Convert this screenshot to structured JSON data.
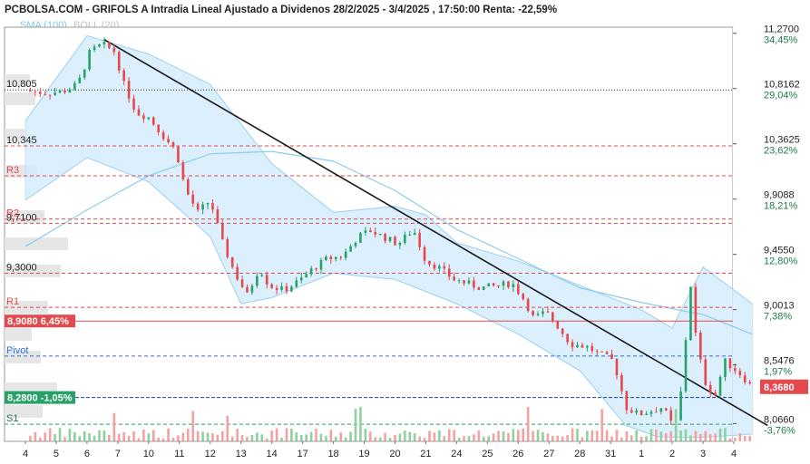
{
  "title": "PCBOLSA.COM - GRIFOLS A Intradia Lineal Ajustado a Dividenos 28/2/2025 - 3/4/2025 , 17:50:00 Renta: -22,59%",
  "legend": {
    "sma": "SMA (100)",
    "boll": "BOLL (20)"
  },
  "colors": {
    "up": "#26a269",
    "down": "#e5484d",
    "sma": "#8ccbf0",
    "band_fill": "#cfe9fb",
    "trendline": "#1a1a1a",
    "volume_up": "#8fd19e",
    "volume_down": "#f4a1a1",
    "badge_red": "#e5484d",
    "badge_green": "#26a269",
    "pivot_blue": "#2e6fd8"
  },
  "chart_data": {
    "type": "candlestick",
    "ylim": [
      7.92,
      11.32
    ],
    "x_labels": [
      "4",
      "5",
      "6",
      "7",
      "10",
      "11",
      "12",
      "13",
      "14",
      "17",
      "18",
      "19",
      "20",
      "21",
      "24",
      "25",
      "26",
      "27",
      "28",
      "31",
      "1",
      "2",
      "3",
      "4"
    ],
    "y_ticks": [
      {
        "price": 11.27,
        "label": "11,2700",
        "pct": "34,45%"
      },
      {
        "price": 10.8162,
        "label": "10,8162",
        "pct": "29,04%"
      },
      {
        "price": 10.3625,
        "label": "10,3625",
        "pct": "23,62%"
      },
      {
        "price": 9.9088,
        "label": "9,9088",
        "pct": "18,21%"
      },
      {
        "price": 9.455,
        "label": "9,4550",
        "pct": "12,80%"
      },
      {
        "price": 9.0013,
        "label": "9,0013",
        "pct": "7,38%"
      },
      {
        "price": 8.5476,
        "label": "8,5476",
        "pct": "1,97%"
      },
      {
        "price": 8.066,
        "label": "8,0660",
        "pct": "-3,76%"
      }
    ],
    "last_price": {
      "value": 8.368,
      "label": "8,3680"
    },
    "levels": [
      {
        "name": "10,805",
        "price": 10.805,
        "style": "resistance-dotted"
      },
      {
        "name": "10,345",
        "price": 10.345,
        "style": "red"
      },
      {
        "name": "R3",
        "price": 10.1,
        "style": "red"
      },
      {
        "name": "9,7100",
        "price": 9.71,
        "style": "red"
      },
      {
        "name": "R2",
        "price": 9.745,
        "style": "red"
      },
      {
        "name": "9,3000",
        "price": 9.3,
        "style": "red"
      },
      {
        "name": "R1",
        "price": 9.02,
        "style": "red"
      },
      {
        "name": "Pivot",
        "price": 8.62,
        "style": "pivot"
      },
      {
        "name": "S1",
        "price": 8.06,
        "style": "green"
      }
    ],
    "badges": [
      {
        "label": "8,9080  6,45%",
        "price": 8.908,
        "color": "red"
      },
      {
        "label": "8,2800  -1,05%",
        "price": 8.28,
        "color": "green"
      }
    ],
    "trendline": {
      "from": {
        "x": 2.55,
        "y": 11.22
      },
      "to": {
        "x": 24.1,
        "y": 8.05
      }
    },
    "price_path": [
      [
        0.0,
        10.8
      ],
      [
        0.6,
        10.78
      ],
      [
        1.2,
        10.79
      ],
      [
        1.7,
        10.85
      ],
      [
        2.1,
        11.12
      ],
      [
        2.5,
        11.18
      ],
      [
        2.9,
        11.12
      ],
      [
        3.2,
        10.85
      ],
      [
        3.6,
        10.62
      ],
      [
        4.0,
        10.58
      ],
      [
        4.5,
        10.42
      ],
      [
        4.9,
        10.3
      ],
      [
        5.2,
        9.98
      ],
      [
        5.6,
        9.8
      ],
      [
        6.0,
        9.9
      ],
      [
        6.4,
        9.55
      ],
      [
        6.8,
        9.3
      ],
      [
        7.2,
        9.12
      ],
      [
        7.6,
        9.35
      ],
      [
        7.9,
        9.2
      ],
      [
        8.4,
        9.16
      ],
      [
        8.9,
        9.24
      ],
      [
        9.3,
        9.33
      ],
      [
        9.8,
        9.42
      ],
      [
        10.3,
        9.44
      ],
      [
        10.8,
        9.6
      ],
      [
        11.2,
        9.65
      ],
      [
        11.6,
        9.6
      ],
      [
        12.1,
        9.54
      ],
      [
        12.6,
        9.66
      ],
      [
        13.0,
        9.4
      ],
      [
        13.4,
        9.35
      ],
      [
        13.9,
        9.25
      ],
      [
        14.3,
        9.22
      ],
      [
        14.8,
        9.18
      ],
      [
        15.4,
        9.2
      ],
      [
        15.8,
        9.22
      ],
      [
        16.2,
        9.08
      ],
      [
        16.5,
        8.93
      ],
      [
        16.9,
        8.98
      ],
      [
        17.3,
        8.86
      ],
      [
        17.7,
        8.72
      ],
      [
        18.2,
        8.7
      ],
      [
        18.6,
        8.64
      ],
      [
        19.1,
        8.58
      ],
      [
        19.5,
        8.2
      ],
      [
        19.9,
        8.14
      ],
      [
        20.3,
        8.17
      ],
      [
        20.7,
        8.2
      ],
      [
        21.0,
        8.05
      ],
      [
        21.2,
        8.1
      ],
      [
        21.6,
        9.2
      ],
      [
        21.8,
        8.7
      ],
      [
        22.1,
        8.38
      ],
      [
        22.4,
        8.3
      ],
      [
        22.7,
        8.58
      ],
      [
        23.0,
        8.52
      ],
      [
        23.3,
        8.45
      ],
      [
        23.6,
        8.36
      ]
    ],
    "sma_path": [
      [
        0,
        9.52
      ],
      [
        2,
        9.82
      ],
      [
        4,
        10.1
      ],
      [
        6,
        10.28
      ],
      [
        8,
        10.3
      ],
      [
        10,
        10.22
      ],
      [
        12,
        9.98
      ],
      [
        14,
        9.66
      ],
      [
        16,
        9.42
      ],
      [
        18,
        9.18
      ],
      [
        20,
        9.06
      ],
      [
        22,
        8.96
      ],
      [
        23.6,
        8.8
      ]
    ],
    "boll_upper": [
      [
        0,
        10.55
      ],
      [
        2,
        11.25
      ],
      [
        4,
        11.1
      ],
      [
        6,
        10.85
      ],
      [
        8,
        10.2
      ],
      [
        10,
        9.8
      ],
      [
        12,
        9.85
      ],
      [
        13,
        9.78
      ],
      [
        14,
        9.55
      ],
      [
        16,
        9.4
      ],
      [
        18,
        9.2
      ],
      [
        20,
        9.0
      ],
      [
        21,
        8.85
      ],
      [
        22,
        9.35
      ],
      [
        23.6,
        9.05
      ]
    ],
    "boll_lower": [
      [
        0,
        9.9
      ],
      [
        2,
        10.25
      ],
      [
        4,
        10.05
      ],
      [
        6,
        9.6
      ],
      [
        7,
        9.05
      ],
      [
        8,
        9.1
      ],
      [
        10,
        9.3
      ],
      [
        12,
        9.25
      ],
      [
        14,
        9.05
      ],
      [
        16,
        8.8
      ],
      [
        18,
        8.5
      ],
      [
        19.5,
        8.05
      ],
      [
        20.5,
        7.96
      ],
      [
        21.5,
        7.95
      ],
      [
        22.5,
        7.96
      ],
      [
        23.6,
        7.98
      ]
    ]
  }
}
